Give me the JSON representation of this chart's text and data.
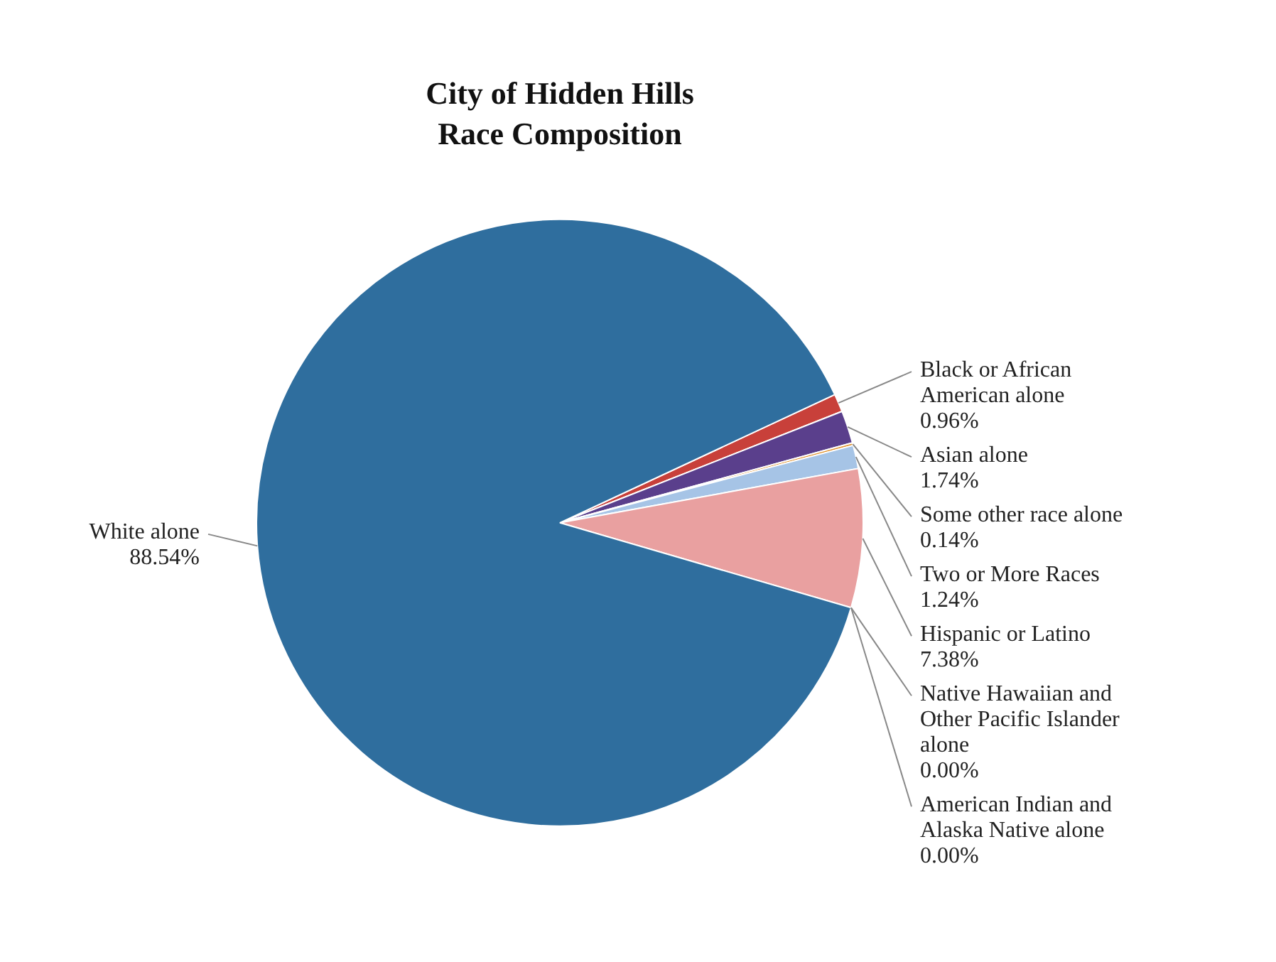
{
  "chart_data": {
    "type": "pie",
    "title": "City of Hidden Hills",
    "subtitle": "Race Composition",
    "categories": [
      "Black or African American alone",
      "Asian alone",
      "Some other race alone",
      "Two or More Races",
      "Hispanic or Latino",
      "American Indian and Alaska Native alone",
      "Native Hawaiian and Other Pacific Islander alone",
      "White alone"
    ],
    "values": [
      0.96,
      1.74,
      0.14,
      1.24,
      7.38,
      0,
      0,
      88.54
    ],
    "value_labels": [
      "0.96%",
      "1.74%",
      "0.14%",
      "1.24%",
      "7.38%",
      "0.00%",
      "0.00%",
      "88.54%"
    ],
    "colors": [
      "#c8403a",
      "#5a3f8c",
      "#e0902a",
      "#a6c4e6",
      "#e9a0a0",
      "#8fb050",
      "#4aa0b0",
      "#2f6e9e"
    ],
    "legend": false
  }
}
